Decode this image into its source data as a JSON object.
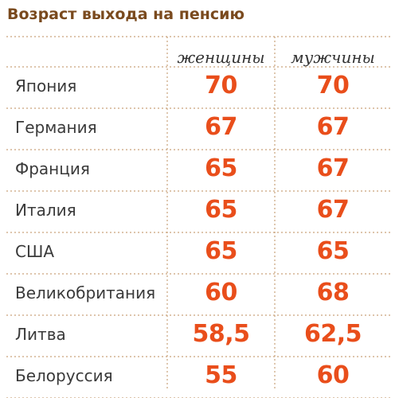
{
  "chart_data": {
    "type": "table",
    "title": "Возраст выхода на пенсию",
    "columns": [
      "женщины",
      "мужчины"
    ],
    "rows": [
      {
        "country": "Япония",
        "women": "70",
        "men": "70"
      },
      {
        "country": "Германия",
        "women": "67",
        "men": "67"
      },
      {
        "country": "Франция",
        "women": "65",
        "men": "67"
      },
      {
        "country": "Италия",
        "women": "65",
        "men": "67"
      },
      {
        "country": "США",
        "women": "65",
        "men": "65"
      },
      {
        "country": "Великобритания",
        "women": "60",
        "men": "68"
      },
      {
        "country": "Литва",
        "women": "58,5",
        "men": "62,5"
      },
      {
        "country": "Белоруссия",
        "women": "55",
        "men": "60"
      }
    ]
  },
  "colors": {
    "title": "#7a4a1e",
    "value": "#e94e1b",
    "text": "#3a3a3a",
    "dotted_rule": "#c9a27a"
  }
}
